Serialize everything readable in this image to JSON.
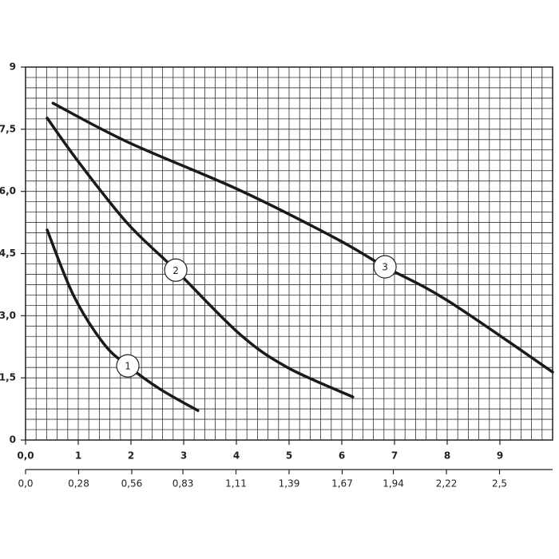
{
  "chart_data": {
    "type": "line",
    "series": [
      {
        "name": "1",
        "color": "#1a1a1a",
        "x": [
          0.41,
          0.91,
          1.48,
          1.94,
          2.55,
          3.27
        ],
        "values": [
          5.07,
          3.49,
          2.33,
          1.79,
          1.23,
          0.71
        ]
      },
      {
        "name": "2",
        "color": "#1a1a1a",
        "x": [
          0.41,
          1.03,
          1.94,
          2.85,
          4.06,
          4.97,
          6.21
        ],
        "values": [
          7.77,
          6.67,
          5.22,
          4.1,
          2.56,
          1.75,
          1.04
        ]
      },
      {
        "name": "3",
        "color": "#1a1a1a",
        "x": [
          0.52,
          1.94,
          4.06,
          5.88,
          6.82,
          8.0,
          10
        ],
        "values": [
          8.13,
          7.19,
          6.03,
          4.87,
          4.18,
          3.37,
          1.64
        ]
      }
    ],
    "xlim": [
      0,
      10
    ],
    "xticks": [
      {
        "value": 0,
        "label": "0,0"
      },
      1,
      2,
      3,
      4,
      5,
      6,
      7,
      8,
      9
    ],
    "x2lim": [
      0,
      2.78
    ],
    "x2ticks": [
      {
        "value": 0,
        "label": "0,0"
      },
      {
        "value": 0.28,
        "label": "0,28"
      },
      {
        "value": 0.56,
        "label": "0,56"
      },
      {
        "value": 0.83,
        "label": "0,83"
      },
      {
        "value": 1.11,
        "label": "1,11"
      },
      {
        "value": 1.39,
        "label": "1,39"
      },
      {
        "value": 1.67,
        "label": "1,67"
      },
      {
        "value": 1.94,
        "label": "1,94"
      },
      {
        "value": 2.22,
        "label": "2,22"
      },
      {
        "value": 2.5,
        "label": "2,5"
      }
    ],
    "ylim": [
      0,
      9
    ],
    "yticks": [
      0,
      {
        "value": 1.5,
        "label": "1,5"
      },
      {
        "value": 3,
        "label": "3,0"
      },
      {
        "value": 4.5,
        "label": "4,5"
      },
      {
        "value": 6,
        "label": "6,0"
      },
      {
        "value": 7.5,
        "label": "7,5"
      },
      9
    ],
    "grid": true
  }
}
